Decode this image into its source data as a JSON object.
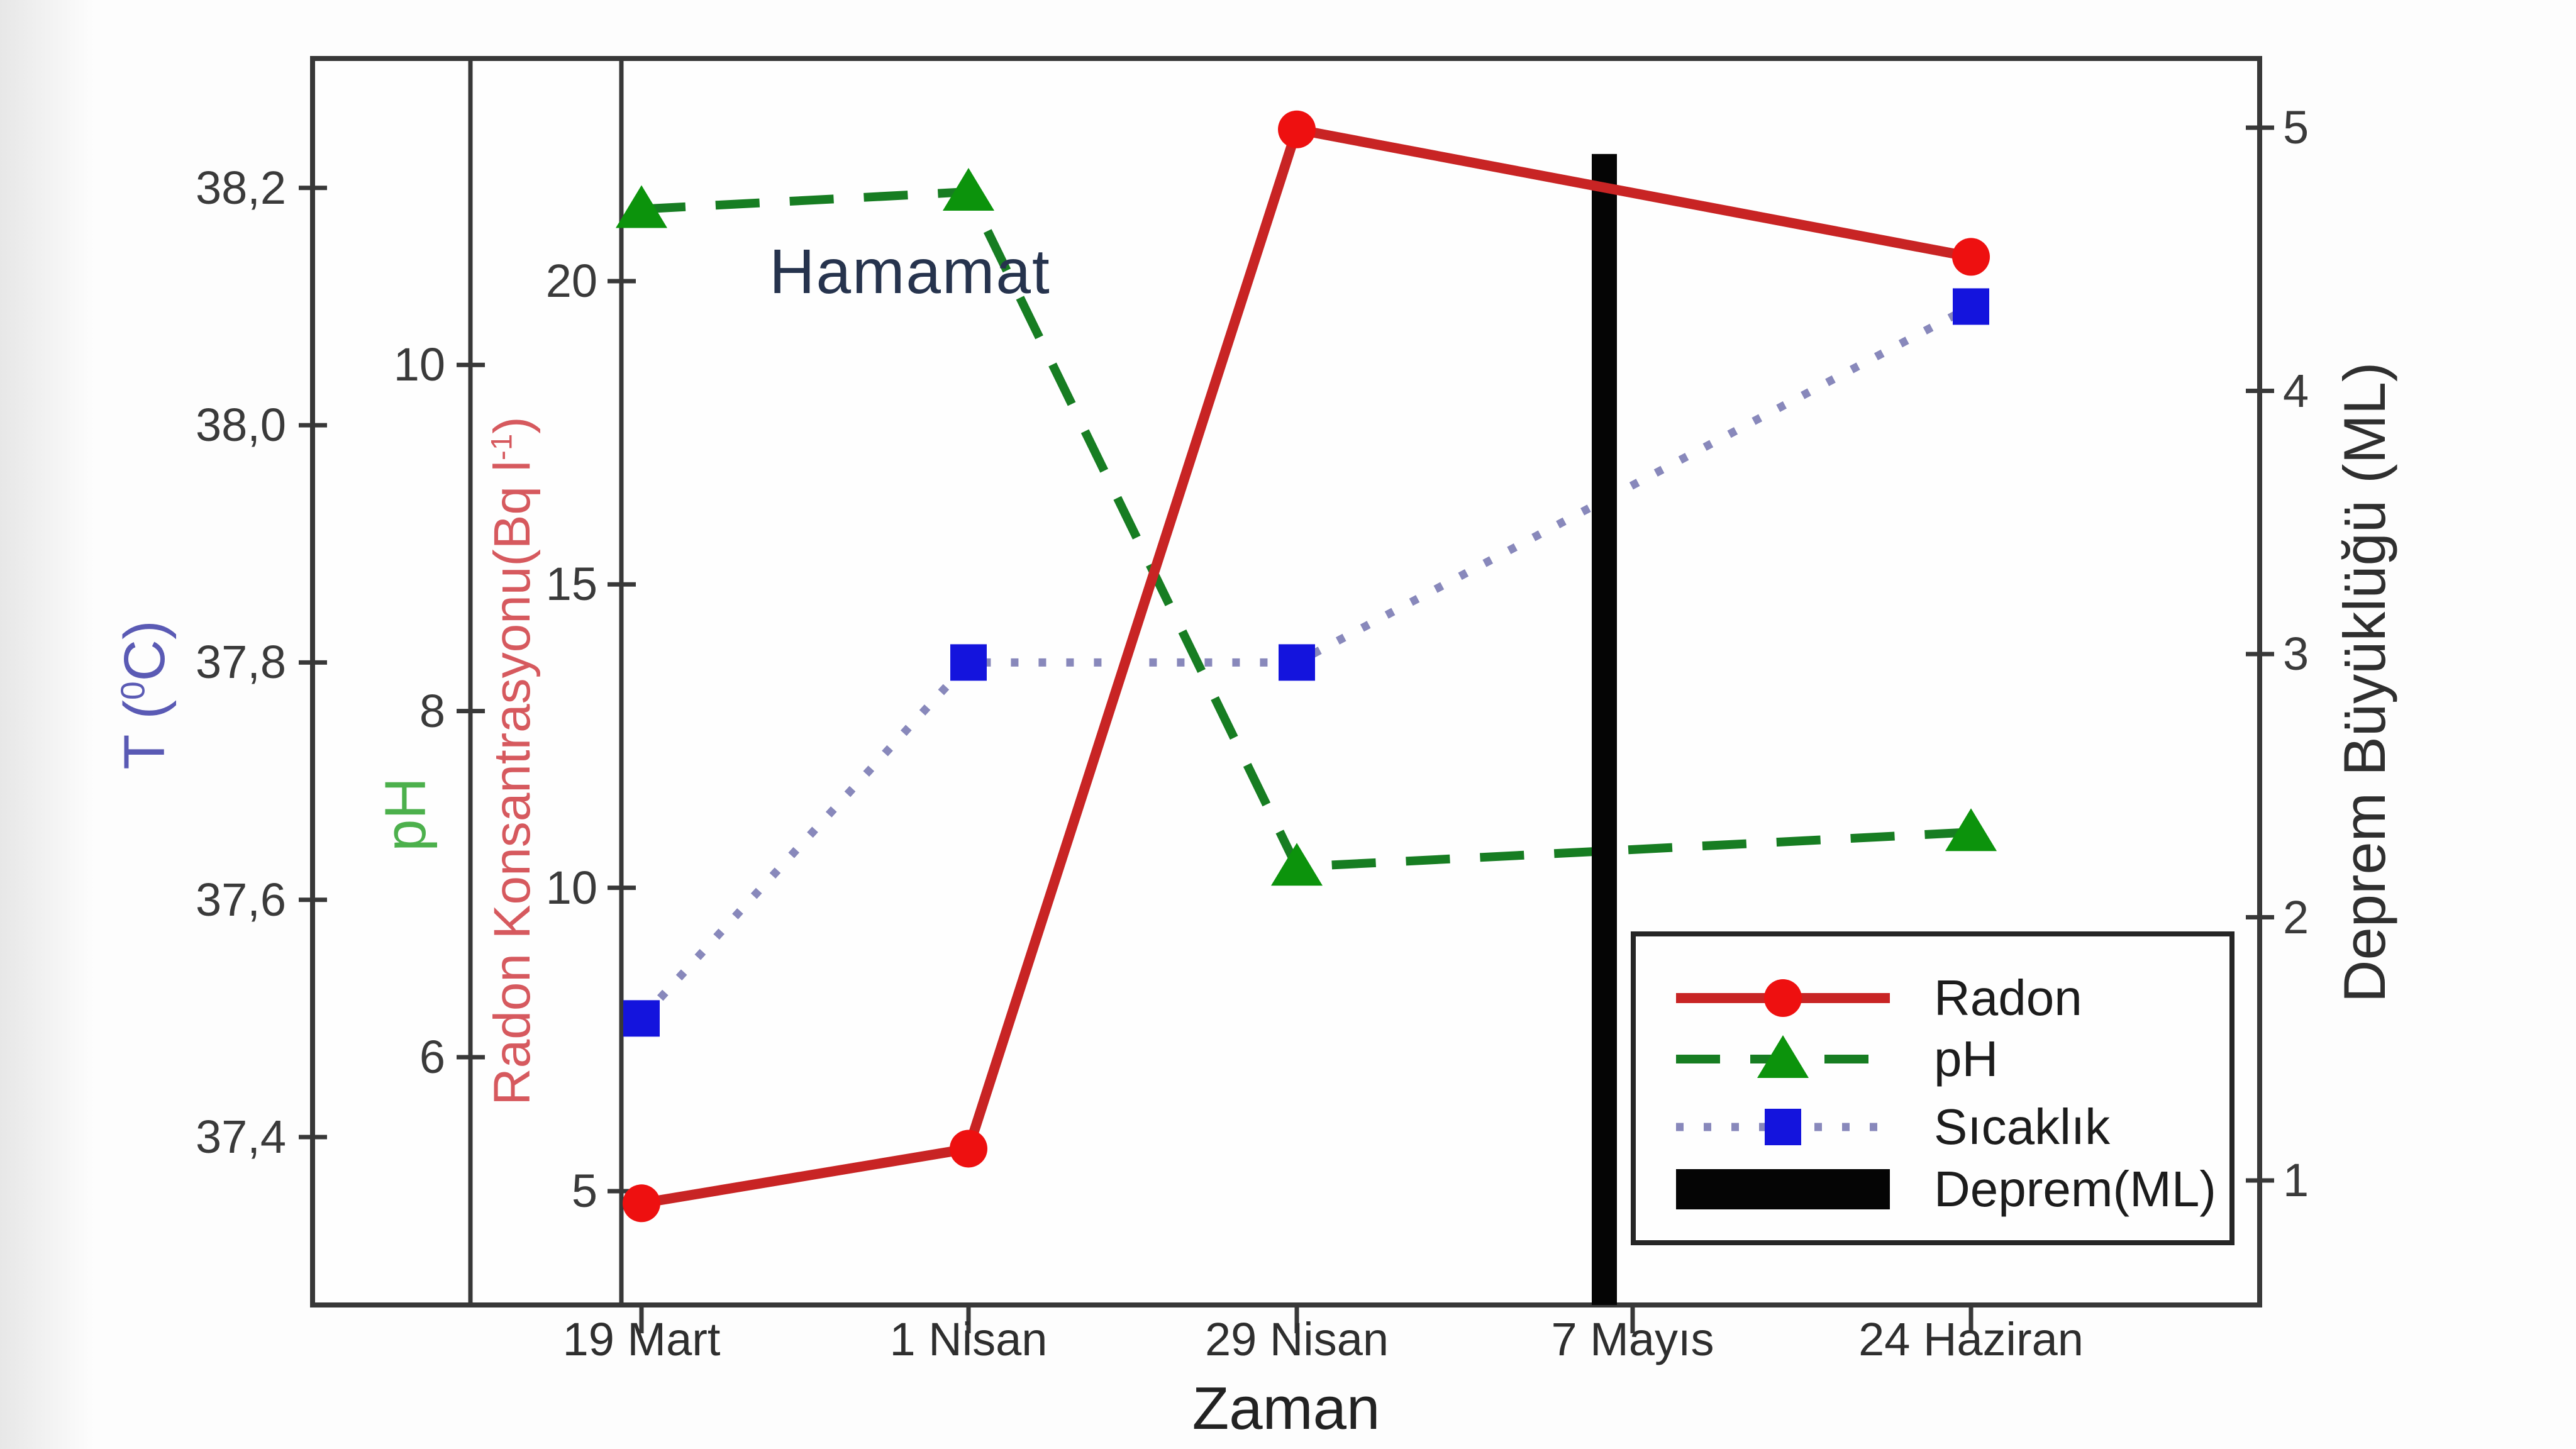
{
  "chart_data": {
    "type": "line",
    "title": "Hamamat",
    "xlabel": "Zaman",
    "background_color": "#fdfdfd",
    "frame_color": "#383838",
    "x_categories": [
      "19 Mart",
      "1 Nisan",
      "29 Nisan",
      "7 Mayıs",
      "24 Haziran"
    ],
    "axes": {
      "temperature": {
        "label_prefix": "T (",
        "label_sup": "0",
        "label_suffix": "C)",
        "color": "#5a5ab4",
        "ticks": [
          "38,2",
          "38,0",
          "37,8",
          "37,6",
          "37,4"
        ],
        "tick_values": [
          38.2,
          38.0,
          37.8,
          37.6,
          37.4
        ],
        "side": "outer-left"
      },
      "ph": {
        "label": "pH",
        "color": "#4cb04c",
        "ticks": [
          "10",
          "8",
          "6"
        ],
        "tick_values": [
          10,
          8,
          6
        ],
        "side": "inner-left-1"
      },
      "radon": {
        "label_prefix": "Radon Konsantrasyonu(Bq l",
        "label_sup": "-1",
        "label_suffix": ")",
        "color": "#d6595e",
        "ticks": [
          "20",
          "15",
          "10",
          "5"
        ],
        "tick_values": [
          20,
          15,
          10,
          5
        ],
        "side": "inner-left-2"
      },
      "magnitude": {
        "label": "Deprem Büyüklüğü (ML)",
        "color": "#2f2f2f",
        "ticks": [
          "5",
          "4",
          "3",
          "2",
          "1"
        ],
        "tick_values": [
          5,
          4,
          3,
          2,
          1
        ],
        "side": "right"
      }
    },
    "series": [
      {
        "name": "Radon",
        "axis": "radon",
        "marker": "circle",
        "line_style": "solid",
        "color": "#c82424",
        "marker_color": "#ee1010",
        "values": [
          4.8,
          5.7,
          22.5,
          null,
          20.4
        ]
      },
      {
        "name": "pH",
        "axis": "ph",
        "marker": "triangle",
        "line_style": "dashed",
        "color": "#177d22",
        "marker_color": "#0c930c",
        "values": [
          10.9,
          11.0,
          7.1,
          null,
          7.3
        ]
      },
      {
        "name": "Sıcaklık",
        "axis": "temperature",
        "marker": "square",
        "line_style": "dotted",
        "color": "#8888bb",
        "marker_color": "#1414dd",
        "values": [
          37.5,
          37.8,
          37.8,
          null,
          38.1
        ]
      },
      {
        "name": "Deprem(ML)",
        "axis": "magnitude",
        "marker": "bar",
        "line_style": "bar",
        "color": "#050505",
        "events": [
          {
            "x": "7 Mayıs",
            "value": 4.9
          }
        ]
      }
    ],
    "legend": {
      "position": "lower-right",
      "entries": [
        "Radon",
        "pH",
        "Sıcaklık",
        "Deprem(ML)"
      ]
    }
  }
}
